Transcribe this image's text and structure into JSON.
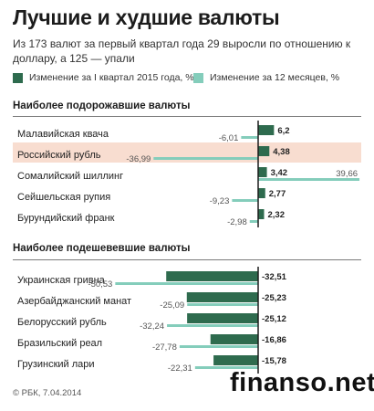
{
  "title": "Лучшие и худшие валюты",
  "subtitle": "Из 173 валют за первый квартал года 29 выросли по отношению к доллару, а 125 — упали",
  "legend": {
    "q1_label": "Изменение за I квартал 2015 года, %",
    "m12_label": "Изменение за 12 месяцев, %"
  },
  "colors": {
    "q1": "#2e6b4e",
    "m12": "#84cdbb",
    "highlight": "#f8ddd0",
    "axis": "#1c1c1c"
  },
  "footer": "© РБК, 7.04.2014",
  "watermark": "finanso.net",
  "chart_data": [
    {
      "type": "bar",
      "orientation": "horizontal",
      "title": "Наиболее подорожавшие валюты",
      "categories": [
        "Малавийская квача",
        "Российский рубль",
        "Сомалийский шиллинг",
        "Сейшельская рупия",
        "Бурундийский франк"
      ],
      "highlight": "Российский рубль",
      "series": [
        {
          "name": "Изменение за I квартал 2015 года, %",
          "values": [
            6.2,
            4.38,
            3.42,
            2.77,
            2.32
          ]
        },
        {
          "name": "Изменение за 12 месяцев, %",
          "values": [
            -6.01,
            -36.99,
            39.66,
            -9.23,
            -2.98
          ]
        }
      ],
      "labels": {
        "q1": [
          "6,2",
          "4,38",
          "3,42",
          "2,77",
          "2,32"
        ],
        "m12": [
          "-6,01",
          "-36,99",
          "39,66",
          "-9,23",
          "-2,98"
        ]
      },
      "xlim": [
        -55,
        40
      ],
      "legend_position": "top"
    },
    {
      "type": "bar",
      "orientation": "horizontal",
      "title": "Наиболее подешевевшие валюты",
      "categories": [
        "Украинская гривна",
        "Азербайджанский манат",
        "Белорусский рубль",
        "Бразильский реал",
        "Грузинский лари"
      ],
      "series": [
        {
          "name": "Изменение за I квартал 2015 года, %",
          "values": [
            -32.51,
            -25.23,
            -25.12,
            -16.86,
            -15.78
          ]
        },
        {
          "name": "Изменение за 12 месяцев, %",
          "values": [
            -50.53,
            -25.09,
            -32.24,
            -27.78,
            -22.31
          ]
        }
      ],
      "labels": {
        "q1": [
          "-32,51",
          "-25,23",
          "-25,12",
          "-16,86",
          "-15,78"
        ],
        "m12": [
          "-50,53",
          "-25,09",
          "-32,24",
          "-27,78",
          "-22,31"
        ]
      },
      "xlim": [
        -55,
        40
      ],
      "legend_position": "top"
    }
  ]
}
